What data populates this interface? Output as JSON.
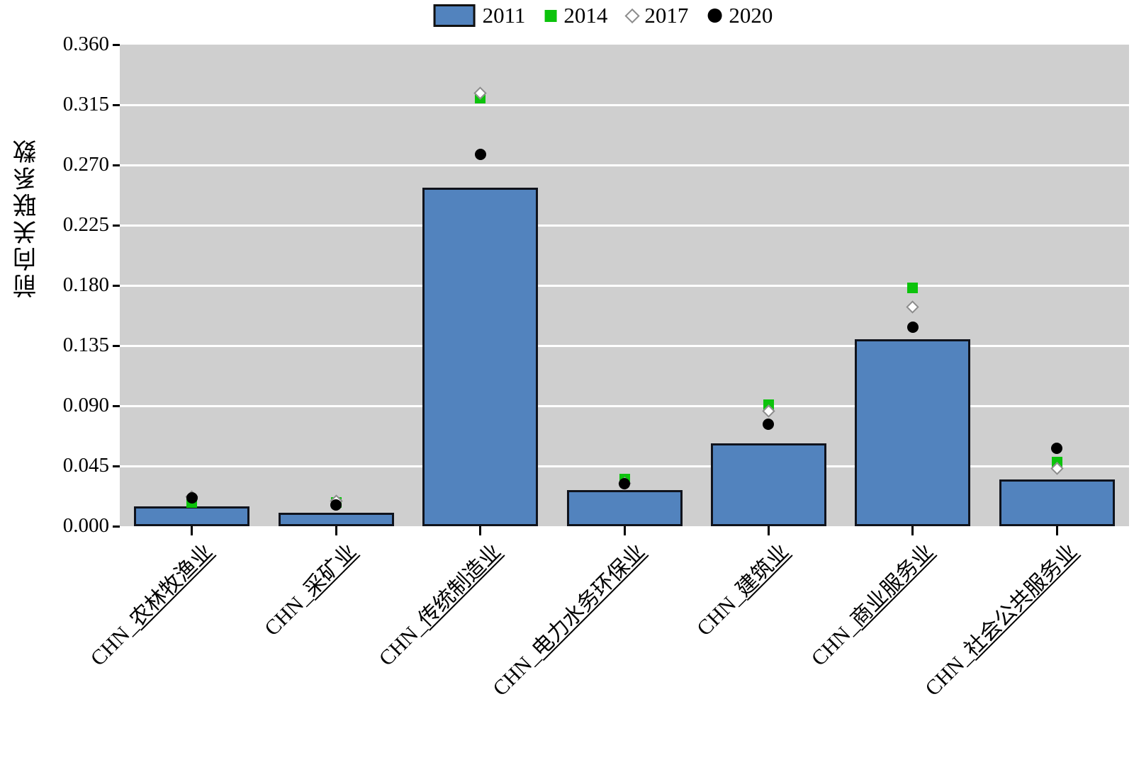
{
  "colors": {
    "bar_fill": "#5283BE",
    "bar_border": "#10131C",
    "marker_green": "#0CC30C",
    "marker_black": "#000000",
    "diamond_border": "#8C8C8C",
    "plot_bg": "#CFCFCF",
    "gridline": "#FFFFFF"
  },
  "legend": {
    "items": [
      {
        "label": "2011",
        "swatch": "bar"
      },
      {
        "label": "2014",
        "swatch": "square"
      },
      {
        "label": "2017",
        "swatch": "diamond"
      },
      {
        "label": "2020",
        "swatch": "circle"
      }
    ]
  },
  "axes": {
    "y_title": "前向关联系数",
    "y_ticks": [
      "0.000",
      "0.045",
      "0.090",
      "0.135",
      "0.180",
      "0.225",
      "0.270",
      "0.315",
      "0.360"
    ]
  },
  "chart_data": {
    "type": "bar",
    "title": "",
    "xlabel": "",
    "ylabel": "前向关联系数",
    "ylim": [
      0,
      0.36
    ],
    "ytick_interval": 0.045,
    "grid": true,
    "legend_position": "top",
    "plot_background": "light-gray",
    "categories": [
      "CHN_农林牧渔业",
      "CHN_采矿业",
      "CHN_传统制造业",
      "CHN_电力水务环保业",
      "CHN_建筑业",
      "CHN_商业服务业",
      "CHN_社会公共服务业"
    ],
    "category_parts": [
      {
        "prefix": "CHN_",
        "name": "农林牧渔业"
      },
      {
        "prefix": "CHN_",
        "name": "采矿业"
      },
      {
        "prefix": "CHN_",
        "name": "传统制造业"
      },
      {
        "prefix": "CHN_",
        "name": "电力水务环保业"
      },
      {
        "prefix": "CHN_",
        "name": "建筑业"
      },
      {
        "prefix": "CHN_",
        "name": "商业服务业"
      },
      {
        "prefix": "CHN_",
        "name": "社会公共服务业"
      }
    ],
    "series": [
      {
        "name": "2011",
        "style": "bar",
        "marker": "blue-bar",
        "values": [
          0.015,
          0.01,
          0.253,
          0.027,
          0.062,
          0.14,
          0.035
        ]
      },
      {
        "name": "2014",
        "style": "square",
        "marker": "green-square",
        "values": [
          0.018,
          0.018,
          0.32,
          0.035,
          0.091,
          0.178,
          0.048
        ]
      },
      {
        "name": "2017",
        "style": "diamond",
        "marker": "white-diamond",
        "values": [
          0.022,
          0.019,
          0.324,
          0.032,
          0.086,
          0.164,
          0.043
        ]
      },
      {
        "name": "2020",
        "style": "circle",
        "marker": "black-circle",
        "values": [
          0.021,
          0.016,
          0.278,
          0.032,
          0.076,
          0.149,
          0.058
        ]
      }
    ]
  }
}
